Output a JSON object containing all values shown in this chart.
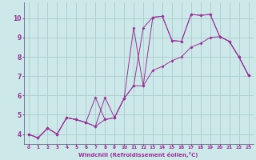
{
  "xlabel": "Windchill (Refroidissement éolien,°C)",
  "background_color": "#cde8e8",
  "grid_color": "#aacccc",
  "line_color": "#993399",
  "xlim": [
    -0.5,
    23.5
  ],
  "ylim": [
    3.5,
    10.8
  ],
  "xticks": [
    0,
    1,
    2,
    3,
    4,
    5,
    6,
    7,
    8,
    9,
    10,
    11,
    12,
    13,
    14,
    15,
    16,
    17,
    18,
    19,
    20,
    21,
    22,
    23
  ],
  "yticks": [
    4,
    5,
    6,
    7,
    8,
    9,
    10
  ],
  "series1": [
    [
      0,
      4.0
    ],
    [
      1,
      3.8
    ],
    [
      2,
      4.3
    ],
    [
      3,
      4.0
    ],
    [
      4,
      4.85
    ],
    [
      5,
      4.75
    ],
    [
      6,
      4.6
    ],
    [
      7,
      4.4
    ],
    [
      8,
      5.9
    ],
    [
      9,
      4.85
    ],
    [
      10,
      5.85
    ],
    [
      11,
      9.5
    ],
    [
      12,
      6.5
    ],
    [
      13,
      10.05
    ],
    [
      14,
      10.1
    ],
    [
      15,
      8.85
    ],
    [
      16,
      8.8
    ],
    [
      17,
      10.2
    ],
    [
      18,
      10.15
    ],
    [
      19,
      10.2
    ],
    [
      20,
      9.05
    ],
    [
      21,
      8.8
    ],
    [
      22,
      8.0
    ],
    [
      23,
      7.05
    ]
  ],
  "series2": [
    [
      0,
      4.0
    ],
    [
      1,
      3.8
    ],
    [
      2,
      4.3
    ],
    [
      3,
      4.0
    ],
    [
      4,
      4.85
    ],
    [
      5,
      4.75
    ],
    [
      6,
      4.6
    ],
    [
      7,
      5.9
    ],
    [
      8,
      4.75
    ],
    [
      9,
      4.85
    ],
    [
      10,
      5.85
    ],
    [
      11,
      6.5
    ],
    [
      12,
      9.5
    ],
    [
      13,
      10.05
    ],
    [
      14,
      10.1
    ],
    [
      15,
      8.85
    ],
    [
      16,
      8.8
    ],
    [
      17,
      10.2
    ],
    [
      18,
      10.15
    ],
    [
      19,
      10.2
    ],
    [
      20,
      9.05
    ],
    [
      21,
      8.8
    ],
    [
      22,
      8.0
    ],
    [
      23,
      7.05
    ]
  ],
  "series3": [
    [
      0,
      4.0
    ],
    [
      1,
      3.8
    ],
    [
      2,
      4.3
    ],
    [
      3,
      4.0
    ],
    [
      4,
      4.85
    ],
    [
      5,
      4.75
    ],
    [
      6,
      4.6
    ],
    [
      7,
      4.4
    ],
    [
      8,
      4.75
    ],
    [
      9,
      4.85
    ],
    [
      10,
      5.85
    ],
    [
      11,
      6.5
    ],
    [
      12,
      6.5
    ],
    [
      13,
      7.3
    ],
    [
      14,
      7.5
    ],
    [
      15,
      7.8
    ],
    [
      16,
      8.0
    ],
    [
      17,
      8.5
    ],
    [
      18,
      8.7
    ],
    [
      19,
      9.0
    ],
    [
      20,
      9.05
    ],
    [
      21,
      8.8
    ],
    [
      22,
      8.0
    ],
    [
      23,
      7.05
    ]
  ]
}
